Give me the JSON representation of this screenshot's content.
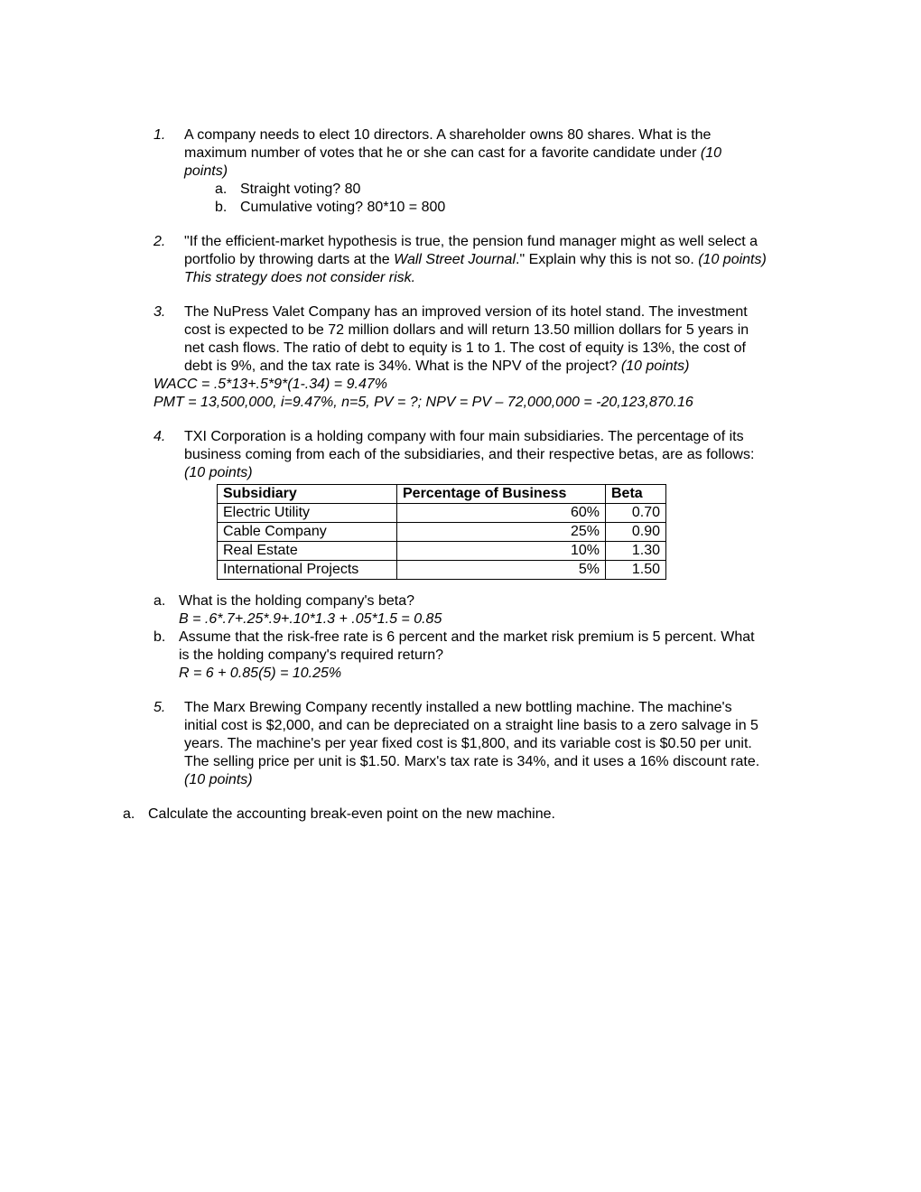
{
  "q1": {
    "num": "1.",
    "text_a": "A company needs to elect 10 directors.  A shareholder owns 80 shares.  What is the maximum number of votes that he or she can cast for a favorite candidate under    ",
    "points": "(10 points)",
    "a_letter": "a.",
    "a_text": "Straight voting?  80",
    "b_letter": "b.",
    "b_text": "Cumulative voting?  80*10 = 800"
  },
  "q2": {
    "num": "2.",
    "quote_open": "\"",
    "text_a": "If the efficient-market hypothesis is true, the pension fund manager might as well select a portfolio by throwing darts at the ",
    "journal": "Wall Street Journal",
    "text_b": ".\"  Explain why this is not so.  ",
    "points": "(10 points)   This strategy does not consider risk."
  },
  "q3": {
    "num": "3.",
    "text": "The NuPress Valet Company has an improved version of its hotel stand.  The investment cost is expected to be 72 million dollars and will return 13.50 million dollars for 5 years in net cash flows.  The ratio of debt to equity is 1 to 1.  The cost of equity is 13%, the cost of debt is 9%, and the tax rate is 34%.  What is the NPV of the project?  ",
    "points": "(10 points)",
    "wacc": "WACC = .5*13+.5*9*(1-.34) = 9.47%",
    "pmt": "PMT = 13,500,000, i=9.47%, n=5, PV = ?; NPV = PV – 72,000,000 = -20,123,870.16"
  },
  "q4": {
    "num": "4.",
    "text": "TXI Corporation is a holding company with four main subsidiaries.  The percentage of its business coming from each of the subsidiaries, and their respective betas, are as follows:  ",
    "points": "(10 points)",
    "headers": {
      "sub": "Subsidiary",
      "pct": "Percentage of Business",
      "beta": "Beta"
    },
    "rows": [
      {
        "sub": "Electric Utility",
        "pct": "60%",
        "beta": "0.70"
      },
      {
        "sub": "Cable Company",
        "pct": "25%",
        "beta": "0.90"
      },
      {
        "sub": "Real Estate",
        "pct": "10%",
        "beta": "1.30"
      },
      {
        "sub": "International Projects",
        "pct": "5%",
        "beta": "1.50"
      }
    ],
    "a_letter": "a.",
    "a_q": "What is the holding company's beta?",
    "a_ans": "B = .6*.7+.25*.9+.10*1.3 + .05*1.5  = 0.85",
    "b_letter": "b.",
    "b_q": "Assume that the risk-free rate is 6 percent and the market risk premium is 5 percent.  What is the holding company's required return?",
    "b_ans": "R = 6 + 0.85(5) = 10.25%"
  },
  "q5": {
    "num": "5.",
    "text": "The Marx Brewing Company recently installed a new bottling machine.  The machine's initial cost is $2,000, and can be depreciated on a straight line basis to a zero salvage in 5 years.  The machine's per year fixed cost is $1,800, and its variable cost is $0.50 per unit.  The selling price per unit is $1.50.  Marx's tax rate is 34%, and it uses a 16% discount rate.  ",
    "points": "(10 points)",
    "a_letter": "a.",
    "a_q": "Calculate the accounting break-even point on the new machine."
  }
}
